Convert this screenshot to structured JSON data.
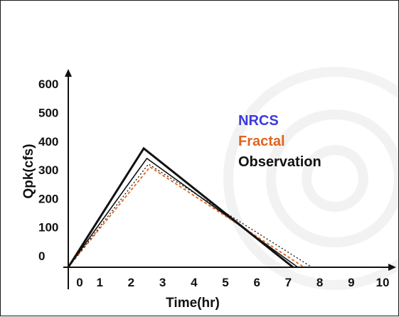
{
  "chart_data": {
    "type": "line",
    "title": "",
    "xlabel": "Time(hr)",
    "ylabel": "Qpk(cfs)",
    "xlim": [
      0,
      10
    ],
    "ylim": [
      0,
      600
    ],
    "x_ticks": [
      "0",
      "1",
      "2",
      "3",
      "4",
      "5",
      "6",
      "7",
      "8",
      "9",
      "10"
    ],
    "y_ticks": [
      "0",
      "100",
      "200",
      "300",
      "400",
      "500",
      "600"
    ],
    "grid": false,
    "legend_position": "center-right",
    "series": [
      {
        "name": "NRCS",
        "color": "#111111",
        "style": "solid-thin",
        "x": [
          0,
          2.5,
          7.3
        ],
        "y": [
          0,
          380,
          0
        ]
      },
      {
        "name": "Fractal",
        "color": "#e0641e",
        "style": "dashed",
        "x": [
          0,
          2.6,
          7.5
        ],
        "y": [
          0,
          350,
          0
        ]
      },
      {
        "name": "Observation",
        "color": "#111111",
        "style": "solid-thick",
        "x": [
          0,
          2.4,
          7.15
        ],
        "y": [
          0,
          415,
          0
        ]
      },
      {
        "name": "",
        "color": "#111111",
        "style": "dotted",
        "x": [
          0,
          2.55,
          7.75
        ],
        "y": [
          0,
          360,
          0
        ]
      }
    ],
    "legend_entries": [
      {
        "label": "NRCS",
        "color": "#3a3adf"
      },
      {
        "label": "Fractal",
        "color": "#e0641e"
      },
      {
        "label": "Observation",
        "color": "#111111"
      }
    ]
  }
}
